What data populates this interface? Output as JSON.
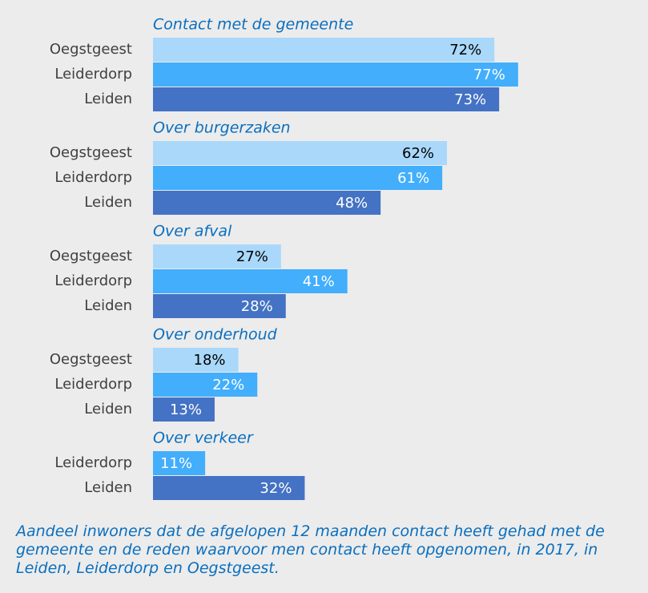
{
  "chart_data": {
    "type": "bar",
    "categories": [
      "Contact met de gemeente",
      "Over burgerzaken",
      "Over afval",
      "Over onderhoud",
      "Over verkeer"
    ],
    "series": [
      {
        "name": "Oegstgeest",
        "color": "#a9d8fb",
        "label_color": "#000000",
        "values": [
          72,
          62,
          27,
          18,
          null
        ],
        "value_labels": [
          "72%",
          "62%",
          "27%",
          "18%",
          null
        ]
      },
      {
        "name": "Leiderdorp",
        "color": "#42aefc",
        "label_color": "#ffffff",
        "values": [
          77,
          61,
          41,
          22,
          11
        ],
        "value_labels": [
          "77%",
          "61%",
          "41%",
          "22%",
          "11%"
        ]
      },
      {
        "name": "Leiden",
        "color": "#4472c4",
        "label_color": "#ffffff",
        "values": [
          73,
          48,
          28,
          13,
          32
        ],
        "value_labels": [
          "73%",
          "48%",
          "28%",
          "13%",
          "32%"
        ]
      }
    ],
    "xlim": [
      0,
      100
    ],
    "caption": "Aandeel inwoners dat de afgelopen 12 maanden contact heeft gehad met de gemeente en de reden waarvoor men contact heeft opgenomen, in 2017, in Leiden, Leiderdorp en Oegstgeest."
  }
}
